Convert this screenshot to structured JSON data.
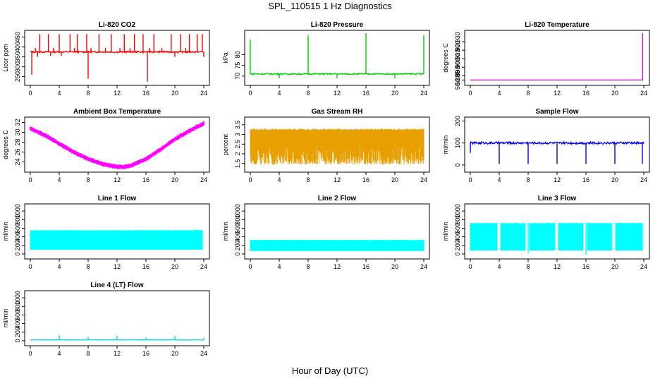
{
  "figure": {
    "title": "SPL_110515  1 Hz Diagnostics",
    "xlabel": "Hour of Day (UTC)"
  },
  "chart_data": [
    {
      "type": "line",
      "title": "Li-820 CO2",
      "ylabel": "Licor ppm",
      "color": "#ff0000",
      "xlim": [
        0,
        24
      ],
      "xticks": [
        0,
        4,
        8,
        12,
        16,
        20,
        24
      ],
      "ylim": [
        220,
        470
      ],
      "yticks": [
        250,
        300,
        350,
        400,
        450
      ],
      "baseline": 375,
      "noise": 4,
      "style": "line",
      "spikes": [
        {
          "x": 0.2,
          "y": 260
        },
        {
          "x": 0.7,
          "y": 395
        },
        {
          "x": 1.0,
          "y": 350
        },
        {
          "x": 1.3,
          "y": 465
        },
        {
          "x": 2.5,
          "y": 465
        },
        {
          "x": 2.8,
          "y": 355
        },
        {
          "x": 3.2,
          "y": 395
        },
        {
          "x": 4.0,
          "y": 465
        },
        {
          "x": 4.3,
          "y": 355
        },
        {
          "x": 5.5,
          "y": 465
        },
        {
          "x": 6.1,
          "y": 395
        },
        {
          "x": 6.5,
          "y": 465
        },
        {
          "x": 7.8,
          "y": 465
        },
        {
          "x": 8.0,
          "y": 240
        },
        {
          "x": 8.4,
          "y": 395
        },
        {
          "x": 9.5,
          "y": 465
        },
        {
          "x": 10.4,
          "y": 395
        },
        {
          "x": 11.2,
          "y": 465
        },
        {
          "x": 12.4,
          "y": 395
        },
        {
          "x": 13.0,
          "y": 465
        },
        {
          "x": 13.8,
          "y": 395
        },
        {
          "x": 14.4,
          "y": 465
        },
        {
          "x": 15.6,
          "y": 465
        },
        {
          "x": 16.2,
          "y": 225
        },
        {
          "x": 16.5,
          "y": 395
        },
        {
          "x": 17.1,
          "y": 465
        },
        {
          "x": 18.2,
          "y": 395
        },
        {
          "x": 19.5,
          "y": 465
        },
        {
          "x": 20.0,
          "y": 350
        },
        {
          "x": 20.8,
          "y": 465
        },
        {
          "x": 21.5,
          "y": 395
        },
        {
          "x": 22.0,
          "y": 465
        },
        {
          "x": 23.1,
          "y": 465
        },
        {
          "x": 23.8,
          "y": 465
        },
        {
          "x": 24.0,
          "y": 350
        }
      ]
    },
    {
      "type": "line",
      "title": "Li-820 Pressure",
      "ylabel": "kPa",
      "color": "#00cc00",
      "xlim": [
        0,
        24
      ],
      "xticks": [
        0,
        4,
        8,
        12,
        16,
        20,
        24
      ],
      "ylim": [
        67,
        90
      ],
      "yticks": [
        70,
        75,
        80
      ],
      "baseline": 71,
      "noise": 0.3,
      "style": "line",
      "spikes": [
        {
          "x": 0.0,
          "y": 87
        },
        {
          "x": 4.0,
          "y": 69
        },
        {
          "x": 8.0,
          "y": 89
        },
        {
          "x": 12.0,
          "y": 69
        },
        {
          "x": 16.0,
          "y": 90
        },
        {
          "x": 20.0,
          "y": 69
        },
        {
          "x": 24.0,
          "y": 89
        }
      ]
    },
    {
      "type": "line",
      "title": "Li-820 Temperature",
      "ylabel": "degrees C",
      "color": "#cc00cc",
      "xlim": [
        0,
        24
      ],
      "xticks": [
        0,
        4,
        8,
        12,
        16,
        20,
        24
      ],
      "ylim": [
        50.882,
        50.94
      ],
      "yticks": [
        50.885,
        50.89,
        50.9,
        50.91,
        50.92,
        50.93
      ],
      "ytick_labels": [
        "50.885",
        "50.890",
        "50.900",
        "50.910",
        "50.920",
        "50.930"
      ],
      "points": [
        {
          "x": 0,
          "y": 50.885
        },
        {
          "x": 23.85,
          "y": 50.885
        },
        {
          "x": 23.85,
          "y": 50.94
        }
      ]
    },
    {
      "type": "line",
      "title": "Ambient Box Temperature",
      "ylabel": "degrees C",
      "color": "#ff00ff",
      "xlim": [
        0,
        24
      ],
      "xticks": [
        0,
        4,
        8,
        12,
        16,
        20,
        24
      ],
      "ylim": [
        22.5,
        32.5
      ],
      "yticks": [
        24,
        26,
        28,
        30,
        32
      ],
      "band": 0.5,
      "points": [
        {
          "x": 0,
          "y": 30.8
        },
        {
          "x": 2,
          "y": 29.4
        },
        {
          "x": 4,
          "y": 27.7
        },
        {
          "x": 6,
          "y": 26.0
        },
        {
          "x": 8,
          "y": 24.6
        },
        {
          "x": 10,
          "y": 23.6
        },
        {
          "x": 12,
          "y": 23.0
        },
        {
          "x": 13,
          "y": 23.0
        },
        {
          "x": 14,
          "y": 23.3
        },
        {
          "x": 16,
          "y": 24.6
        },
        {
          "x": 18,
          "y": 26.5
        },
        {
          "x": 20,
          "y": 28.6
        },
        {
          "x": 22,
          "y": 30.3
        },
        {
          "x": 24,
          "y": 31.8
        }
      ]
    },
    {
      "type": "area",
      "title": "Gas Stream RH",
      "ylabel": "percent",
      "color": "#e8a000",
      "xlim": [
        0,
        24
      ],
      "xticks": [
        0,
        4,
        8,
        12,
        16,
        20,
        24
      ],
      "ylim": [
        1.2,
        3.75
      ],
      "yticks": [
        1.5,
        2.0,
        2.5,
        3.0,
        3.5
      ],
      "band_top": 3.3,
      "band_bottom": 1.45,
      "dips": [
        {
          "x": 0.6,
          "y": 1.5
        },
        {
          "x": 2.0,
          "y": 1.7
        },
        {
          "x": 3.4,
          "y": 1.5
        },
        {
          "x": 5.5,
          "y": 1.6
        },
        {
          "x": 7.0,
          "y": 1.5
        },
        {
          "x": 8.6,
          "y": 1.7
        },
        {
          "x": 10.3,
          "y": 1.6
        },
        {
          "x": 12.2,
          "y": 1.5
        },
        {
          "x": 14.8,
          "y": 1.6
        },
        {
          "x": 16.7,
          "y": 1.7
        },
        {
          "x": 18.2,
          "y": 1.6
        },
        {
          "x": 20.6,
          "y": 1.5
        },
        {
          "x": 22.8,
          "y": 1.6
        }
      ]
    },
    {
      "type": "line",
      "title": "Sample Flow",
      "ylabel": "ml/min",
      "color": "#0000ee",
      "xlim": [
        0,
        24
      ],
      "xticks": [
        0,
        4,
        8,
        12,
        16,
        20,
        24
      ],
      "ylim": [
        -20,
        205
      ],
      "yticks": [
        0,
        100,
        200
      ],
      "baseline": 100,
      "noise": 5,
      "style": "line",
      "spikes": [
        {
          "x": 0.0,
          "y": 55
        },
        {
          "x": 4.0,
          "y": 5
        },
        {
          "x": 8.0,
          "y": 5
        },
        {
          "x": 12.0,
          "y": 5
        },
        {
          "x": 16.0,
          "y": 5
        },
        {
          "x": 20.0,
          "y": 5
        },
        {
          "x": 23.8,
          "y": 5
        }
      ]
    },
    {
      "type": "area",
      "title": "Line 1 Flow",
      "ylabel": "ml/min",
      "color": "#00ffff",
      "xlim": [
        0,
        24
      ],
      "xticks": [
        0,
        4,
        8,
        12,
        16,
        20,
        24
      ],
      "ylim": [
        -50,
        1100
      ],
      "yticks": [
        0,
        200,
        400,
        600,
        800,
        1000
      ],
      "band_top": 560,
      "band_bottom": 100,
      "segments": [
        [
          0,
          3.9
        ],
        [
          4.0,
          7.9
        ],
        [
          8.0,
          11.9
        ],
        [
          12.0,
          15.9
        ],
        [
          16.0,
          19.9
        ],
        [
          20.0,
          23.8
        ]
      ]
    },
    {
      "type": "area",
      "title": "Line 2 Flow",
      "ylabel": "ml/min",
      "color": "#00ffff",
      "xlim": [
        0,
        24
      ],
      "xticks": [
        0,
        4,
        8,
        12,
        16,
        20,
        24
      ],
      "ylim": [
        -50,
        1100
      ],
      "yticks": [
        0,
        200,
        400,
        600,
        800,
        1000
      ],
      "band_top": 330,
      "band_bottom": 70,
      "segments": [
        [
          0,
          3.9
        ],
        [
          4.0,
          7.9
        ],
        [
          8.0,
          11.9
        ],
        [
          12.0,
          15.9
        ],
        [
          16.0,
          19.9
        ],
        [
          20.0,
          24.0
        ]
      ]
    },
    {
      "type": "area",
      "title": "Line 3 Flow",
      "ylabel": "ml/min",
      "color": "#00ffff",
      "xlim": [
        0,
        24
      ],
      "xticks": [
        0,
        4,
        8,
        12,
        16,
        20,
        24
      ],
      "ylim": [
        -50,
        1100
      ],
      "yticks": [
        0,
        200,
        400,
        600,
        800,
        1000
      ],
      "band_top": 730,
      "band_bottom": 80,
      "segments": [
        [
          0,
          3.7
        ],
        [
          4.2,
          7.6
        ],
        [
          8.2,
          11.7
        ],
        [
          12.2,
          15.6
        ],
        [
          16.2,
          19.6
        ],
        [
          20.1,
          23.8
        ]
      ],
      "dips": [
        {
          "x": 16.0,
          "y": -20
        },
        {
          "x": 8.0,
          "y": 20
        }
      ]
    },
    {
      "type": "line",
      "title": "Line 4 (LT) Flow",
      "ylabel": "ml/min",
      "color": "#00e0e0",
      "xlim": [
        0,
        24
      ],
      "xticks": [
        0,
        4,
        8,
        12,
        16,
        20,
        24
      ],
      "ylim": [
        -50,
        1100
      ],
      "yticks": [
        0,
        200,
        400,
        600,
        800,
        1000
      ],
      "baseline": 20,
      "noise": 3,
      "style": "line",
      "spikes": [
        {
          "x": 4.0,
          "y": 130
        },
        {
          "x": 8.0,
          "y": 90
        },
        {
          "x": 12.0,
          "y": 120
        },
        {
          "x": 16.0,
          "y": 80
        },
        {
          "x": 20.0,
          "y": 120
        },
        {
          "x": 24.0,
          "y": 70
        }
      ]
    }
  ]
}
